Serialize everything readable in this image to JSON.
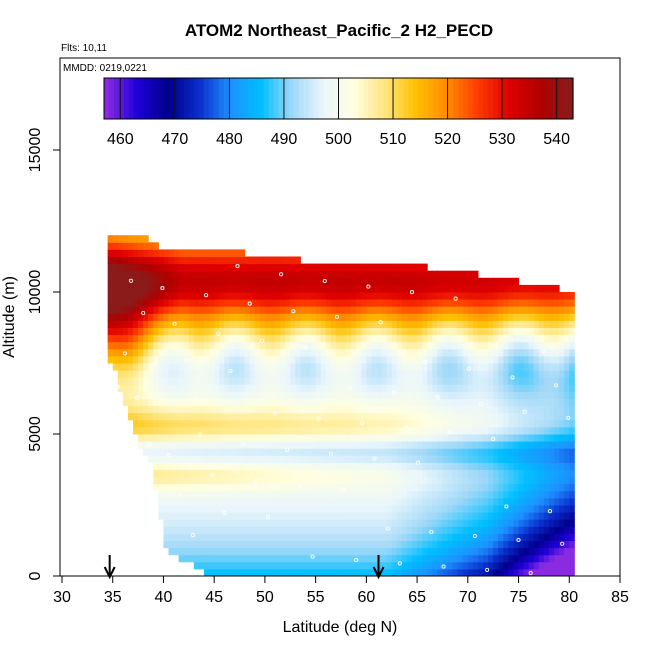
{
  "chart_data": {
    "type": "heatmap",
    "title": "ATOM2 Northeast_Pacific_2 H2_PECD",
    "flights_note": "Flts: 10,11",
    "date_note": "MMDD: 0219,0221",
    "xlabel": "Latitude (deg N)",
    "ylabel": "Altitude (m)",
    "xlim": [
      30,
      85
    ],
    "ylim": [
      0,
      17500
    ],
    "x_ticks": [
      "30",
      "35",
      "40",
      "45",
      "50",
      "55",
      "60",
      "65",
      "70",
      "75",
      "80",
      "85"
    ],
    "y_ticks": [
      "0",
      "5000",
      "10000",
      "15000"
    ],
    "colorbar": {
      "min": 457,
      "max": 543,
      "ticks": [
        "460",
        "470",
        "480",
        "490",
        "500",
        "510",
        "520",
        "530",
        "540"
      ],
      "colors": [
        "#8a2be2",
        "#1e00d8",
        "#00008b",
        "#0a2ecc",
        "#1e90ff",
        "#00bfff",
        "#a0d8f8",
        "#eaf6fc",
        "#ffffe0",
        "#ffe680",
        "#ffc000",
        "#ff8c00",
        "#ff3c00",
        "#e00000",
        "#b00000",
        "#8b1a1a"
      ]
    },
    "arrows_latitude": [
      34.7,
      61.2
    ],
    "series": [
      {
        "name": "profile_top",
        "x": [
          36.0,
          38.0,
          39.5,
          44.0,
          53.5,
          68.0,
          74.0,
          79.0
        ],
        "y": [
          12000,
          11800,
          11400,
          11400,
          11000,
          10700,
          10300,
          10000
        ]
      },
      {
        "name": "profile_bottom",
        "x": [
          34.5,
          35.0,
          36.0,
          37.0,
          38.5,
          40.0,
          45.0,
          50.0,
          60.0,
          70.0,
          80.0
        ],
        "y": [
          7500,
          7300,
          6000,
          5000,
          4000,
          1000,
          0,
          0,
          0,
          0,
          0
        ]
      }
    ]
  }
}
